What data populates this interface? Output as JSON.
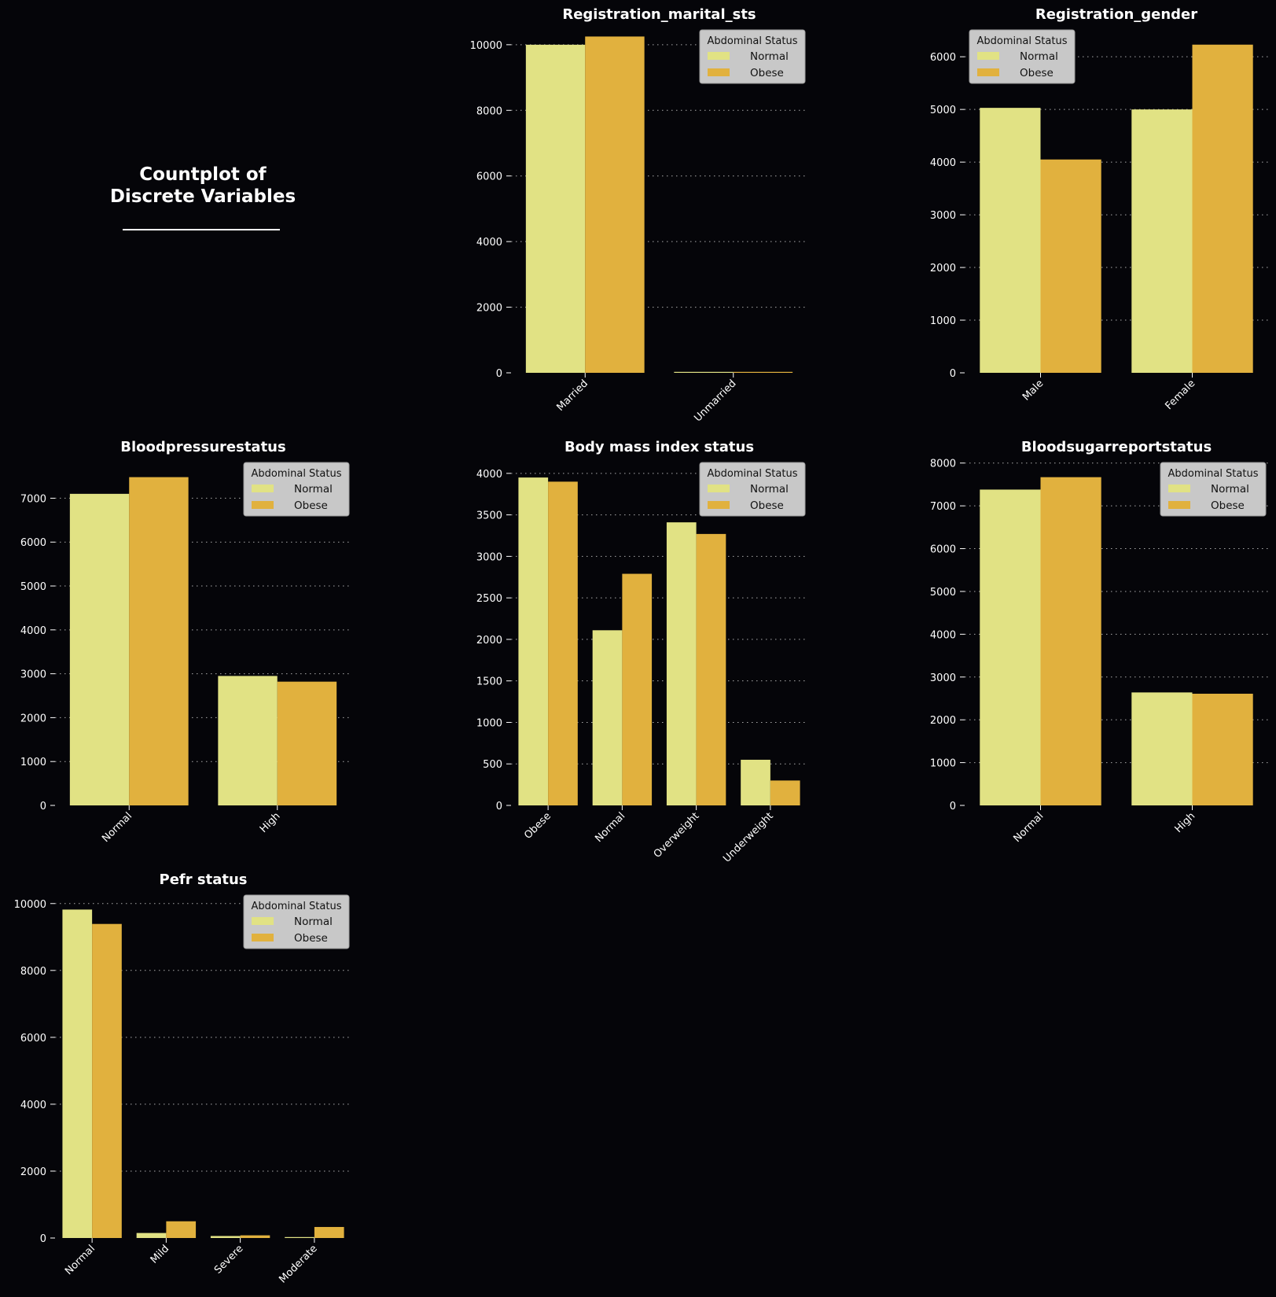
{
  "figure": {
    "title_line1": "Countplot of",
    "title_line2": "Discrete Variables",
    "background": "#050509",
    "palette": {
      "Normal": "#e1e284",
      "Obese": "#e1b13e"
    },
    "legend_box_color": "#c8c8c8"
  },
  "chart_data": [
    {
      "type": "bar",
      "title": "Registration_marital_sts",
      "categories": [
        "Married",
        "Unmarried"
      ],
      "series": [
        {
          "name": "Normal",
          "values": [
            10000,
            12
          ]
        },
        {
          "name": "Obese",
          "values": [
            10250,
            12
          ]
        }
      ],
      "ylim": [
        0,
        10500
      ],
      "yticks": [
        0,
        2000,
        4000,
        6000,
        8000,
        10000
      ],
      "legend": {
        "title": "Abdominal Status",
        "placement": "top-right"
      },
      "grid": "y dotted"
    },
    {
      "type": "bar",
      "title": "Registration_gender",
      "categories": [
        "Male",
        "Female"
      ],
      "series": [
        {
          "name": "Normal",
          "values": [
            5030,
            5000
          ]
        },
        {
          "name": "Obese",
          "values": [
            4050,
            6230
          ]
        }
      ],
      "ylim": [
        0,
        6540
      ],
      "yticks": [
        0,
        1000,
        2000,
        3000,
        4000,
        5000,
        6000
      ],
      "legend": {
        "title": "Abdominal Status",
        "placement": "top-left"
      },
      "grid": "y dotted"
    },
    {
      "type": "bar",
      "title": "Bloodpressurestatus",
      "categories": [
        "Normal",
        "High"
      ],
      "series": [
        {
          "name": "Normal",
          "values": [
            7100,
            2950
          ]
        },
        {
          "name": "Obese",
          "values": [
            7480,
            2820
          ]
        }
      ],
      "ylim": [
        0,
        7850
      ],
      "yticks": [
        0,
        1000,
        2000,
        3000,
        4000,
        5000,
        6000,
        7000
      ],
      "legend": {
        "title": "Abdominal Status",
        "placement": "top-right"
      },
      "grid": "y dotted"
    },
    {
      "type": "bar",
      "title": "Body mass index status",
      "categories": [
        "Obese",
        "Normal",
        "Overweight",
        "Underweight"
      ],
      "series": [
        {
          "name": "Normal",
          "values": [
            3950,
            2110,
            3410,
            550
          ]
        },
        {
          "name": "Obese",
          "values": [
            3900,
            2790,
            3270,
            300
          ]
        }
      ],
      "ylim": [
        0,
        4150
      ],
      "yticks": [
        0,
        500,
        1000,
        1500,
        2000,
        2500,
        3000,
        3500,
        4000
      ],
      "legend": {
        "title": "Abdominal Status",
        "placement": "top-right"
      },
      "grid": "y dotted"
    },
    {
      "type": "bar",
      "title": "Bloodsugarreportstatus",
      "categories": [
        "Normal",
        "High"
      ],
      "series": [
        {
          "name": "Normal",
          "values": [
            7380,
            2640
          ]
        },
        {
          "name": "Obese",
          "values": [
            7670,
            2610
          ]
        }
      ],
      "ylim": [
        0,
        8050
      ],
      "yticks": [
        0,
        1000,
        2000,
        3000,
        4000,
        5000,
        6000,
        7000,
        8000
      ],
      "legend": {
        "title": "Abdominal Status",
        "placement": "top-right"
      },
      "grid": "y dotted"
    },
    {
      "type": "bar",
      "title": "Pefr status",
      "categories": [
        "Normal",
        "Mild",
        "Severe",
        "Moderate"
      ],
      "series": [
        {
          "name": "Normal",
          "values": [
            9820,
            150,
            60,
            20
          ]
        },
        {
          "name": "Obese",
          "values": [
            9390,
            500,
            80,
            330
          ]
        }
      ],
      "ylim": [
        0,
        10300
      ],
      "yticks": [
        0,
        2000,
        4000,
        6000,
        8000,
        10000
      ],
      "legend": {
        "title": "Abdominal Status",
        "placement": "top-right"
      },
      "grid": "y dotted"
    }
  ]
}
